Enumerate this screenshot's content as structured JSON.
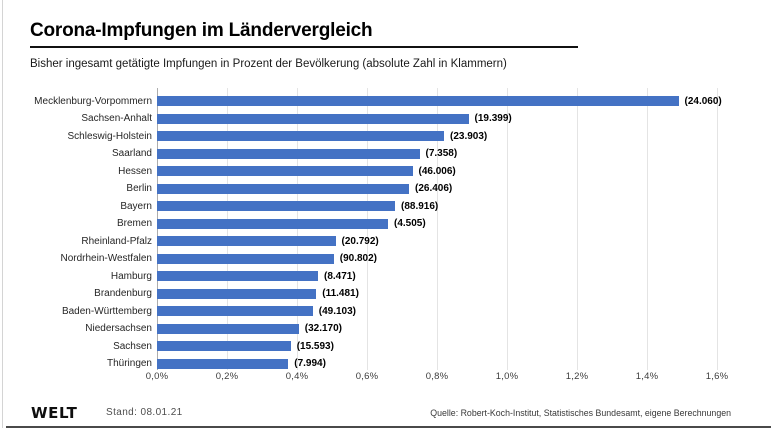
{
  "chart_data": {
    "type": "bar",
    "orientation": "horizontal",
    "title": "Corona-Impfungen im Ländervergleich",
    "subtitle": "Bisher ingesamt getätigte Impfungen in Prozent der Bevölkerung (absolute Zahl in Klammern)",
    "categories": [
      "Mecklenburg-Vorpommern",
      "Sachsen-Anhalt",
      "Schleswig-Holstein",
      "Saarland",
      "Hessen",
      "Berlin",
      "Bayern",
      "Bremen",
      "Rheinland-Pfalz",
      "Nordrhein-Westfalen",
      "Hamburg",
      "Brandenburg",
      "Baden-Württemberg",
      "Niedersachsen",
      "Sachsen",
      "Thüringen"
    ],
    "values_percent": [
      1.49,
      0.89,
      0.82,
      0.75,
      0.73,
      0.72,
      0.68,
      0.66,
      0.51,
      0.505,
      0.46,
      0.455,
      0.445,
      0.405,
      0.382,
      0.375
    ],
    "value_labels": [
      "(24.060)",
      "(19.399)",
      "(23.903)",
      "(7.358)",
      "(46.006)",
      "(26.406)",
      "(88.916)",
      "(4.505)",
      "(20.792)",
      "(90.802)",
      "(8.471)",
      "(11.481)",
      "(49.103)",
      "(32.170)",
      "(15.593)",
      "(7.994)"
    ],
    "x_ticks": [
      "0,0%",
      "0,2%",
      "0,4%",
      "0,6%",
      "0,8%",
      "1,0%",
      "1,2%",
      "1,4%",
      "1,6%"
    ],
    "x_tick_values": [
      0,
      0.2,
      0.4,
      0.6,
      0.8,
      1.0,
      1.2,
      1.4,
      1.6
    ],
    "xlim": [
      0,
      1.6
    ],
    "xlabel": "",
    "ylabel": "",
    "grid": "vertical-only",
    "legend": "none",
    "bar_color": "#4472c4"
  },
  "footer": {
    "brand": "WELT",
    "stand": "Stand: 08.01.21",
    "source": "Quelle: Robert-Koch-Institut, Statistisches Bundesamt, eigene Berechnungen"
  },
  "colors": {
    "bar": "#4472c4",
    "gridline": "#e4e4e4",
    "zero_axis": "#adadad",
    "title_text": "#000000",
    "rule": "#111111"
  }
}
